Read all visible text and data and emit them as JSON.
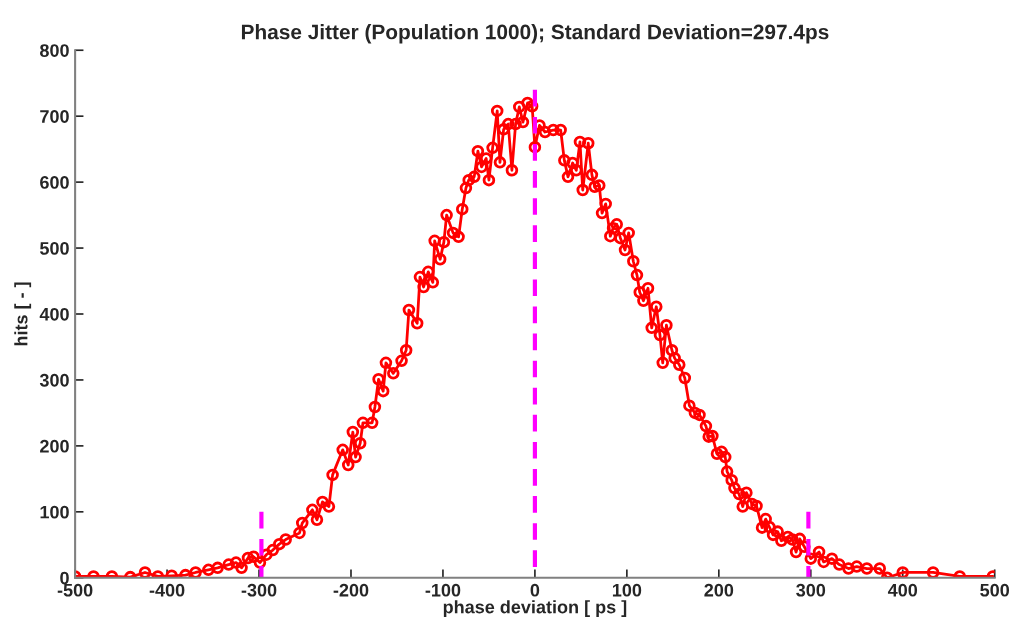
{
  "chart_data": {
    "type": "line",
    "title": "Phase Jitter (Population 1000); Standard Deviation=297.4ps",
    "xlabel": "phase deviation [ ps ]",
    "ylabel": "hits [ - ]",
    "xlim": [
      -500,
      500
    ],
    "ylim": [
      0,
      800
    ],
    "xticks": [
      -500,
      -400,
      -300,
      -200,
      -100,
      0,
      100,
      200,
      300,
      400,
      500
    ],
    "yticks": [
      0,
      100,
      200,
      300,
      400,
      500,
      600,
      700,
      800
    ],
    "grid": false,
    "series": [
      {
        "color": "#ff0000",
        "marker": "circle",
        "line_style": "solid",
        "x": [
          -500,
          -480,
          -460,
          -440,
          -424,
          -410,
          -395,
          -380,
          -369,
          -355,
          -345,
          -333,
          -325,
          -319,
          -312,
          -306,
          -299,
          -292,
          -285,
          -278,
          -271,
          -256,
          -253,
          -242,
          -237,
          -231,
          -224,
          -220,
          -209,
          -203,
          -198,
          -195,
          -190,
          -187,
          -177,
          -174,
          -170,
          -165,
          -162,
          -154,
          -145,
          -140,
          -137,
          -128,
          -125,
          -121,
          -116,
          -111,
          -109,
          -103,
          -99,
          -96,
          -89,
          -83,
          -79,
          -75,
          -72,
          -66,
          -62,
          -58,
          -53,
          -50,
          -46,
          -41,
          -38,
          -34,
          -29,
          -25,
          -21,
          -17,
          -13,
          -8,
          -3,
          0,
          5,
          11,
          20,
          28,
          32,
          36,
          41,
          45,
          49,
          52,
          58,
          62,
          65,
          70,
          73,
          77,
          82,
          85,
          89,
          93,
          98,
          102,
          107,
          111,
          114,
          118,
          123,
          127,
          132,
          136,
          139,
          143,
          149,
          152,
          157,
          163,
          168,
          174,
          179,
          186,
          189,
          193,
          198,
          203,
          207,
          209,
          214,
          217,
          222,
          226,
          230,
          236,
          241,
          247,
          251,
          255,
          259,
          264,
          268,
          275,
          280,
          284,
          288,
          293,
          300,
          309,
          314,
          323,
          331,
          341,
          350,
          361,
          375,
          383,
          400,
          433,
          462,
          498
        ],
        "values": [
          2,
          2,
          2,
          1,
          8,
          2,
          3,
          4,
          8,
          12,
          15,
          20,
          23,
          15,
          30,
          32,
          23,
          35,
          42,
          51,
          58,
          68,
          83,
          103,
          88,
          115,
          108,
          156,
          194,
          171,
          221,
          183,
          204,
          235,
          235,
          259,
          301,
          283,
          326,
          310,
          329,
          345,
          406,
          386,
          456,
          441,
          464,
          448,
          511,
          483,
          509,
          550,
          523,
          517,
          559,
          591,
          603,
          608,
          647,
          623,
          636,
          603,
          652,
          708,
          630,
          680,
          688,
          618,
          688,
          714,
          691,
          720,
          715,
          653,
          686,
          676,
          679,
          679,
          633,
          608,
          629,
          618,
          661,
          588,
          659,
          611,
          593,
          595,
          553,
          567,
          518,
          530,
          536,
          515,
          497,
          523,
          480,
          459,
          433,
          420,
          439,
          379,
          411,
          368,
          326,
          383,
          345,
          333,
          323,
          303,
          261,
          250,
          247,
          230,
          214,
          215,
          188,
          191,
          183,
          161,
          148,
          136,
          127,
          108,
          129,
          112,
          109,
          76,
          89,
          77,
          65,
          70,
          56,
          62,
          58,
          39,
          59,
          47,
          29,
          39,
          24,
          29,
          20,
          14,
          17,
          14,
          14,
          0,
          8,
          8,
          2,
          2
        ]
      },
      {
        "color": "#ff00ff",
        "marker": "none",
        "line_style": "dashed",
        "x": [
          -297.4,
          -297.4
        ],
        "values": [
          0,
          100
        ]
      },
      {
        "color": "#ff00ff",
        "marker": "none",
        "line_style": "dashed",
        "x": [
          0,
          0
        ],
        "values": [
          0,
          740
        ]
      },
      {
        "color": "#ff00ff",
        "marker": "none",
        "line_style": "dashed",
        "x": [
          297.4,
          297.4
        ],
        "values": [
          0,
          100
        ]
      }
    ]
  }
}
